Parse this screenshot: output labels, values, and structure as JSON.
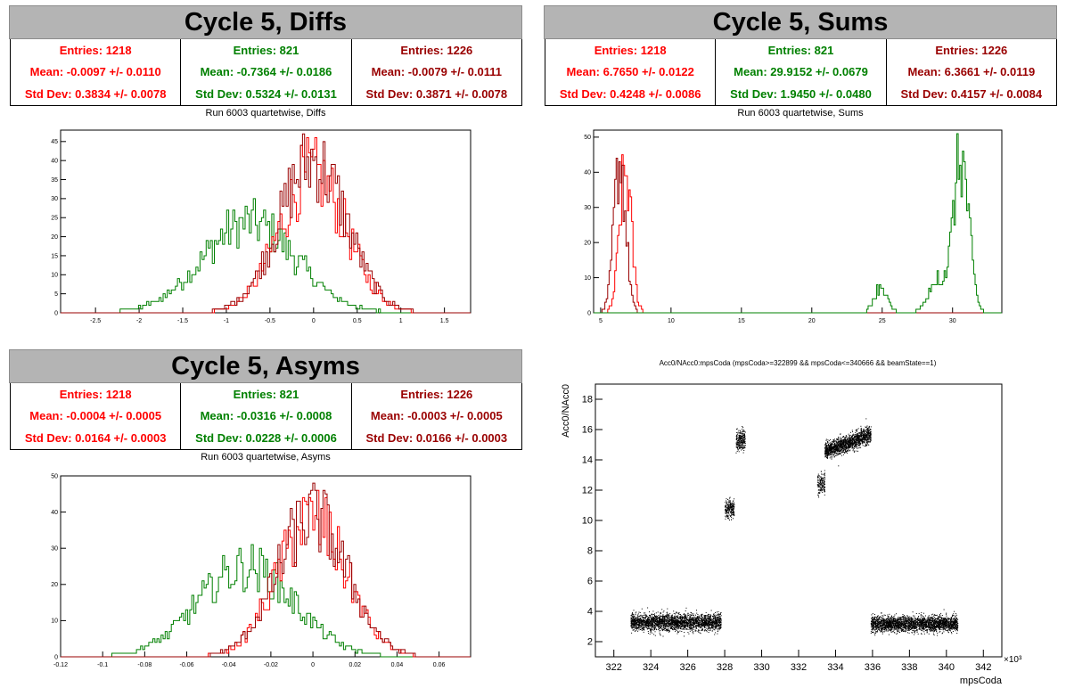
{
  "panels": [
    {
      "title": "Cycle 5, Diffs",
      "subtitle": "Run 6003 quartetwise, Diffs",
      "stats": [
        {
          "entries": "Entries: 1218",
          "mean": "Mean: -0.0097 +/- 0.0110",
          "std": "Std Dev: 0.3834 +/- 0.0078"
        },
        {
          "entries": "Entries: 821",
          "mean": "Mean: -0.7364 +/- 0.0186",
          "std": "Std Dev: 0.5324 +/- 0.0131"
        },
        {
          "entries": "Entries: 1226",
          "mean": "Mean: -0.0079 +/- 0.0111",
          "std": "Std Dev: 0.3871 +/- 0.0078"
        }
      ]
    },
    {
      "title": "Cycle 5, Sums",
      "subtitle": "Run 6003 quartetwise, Sums",
      "stats": [
        {
          "entries": "Entries: 1218",
          "mean": "Mean: 6.7650 +/- 0.0122",
          "std": "Std Dev: 0.4248 +/- 0.0086"
        },
        {
          "entries": "Entries: 821",
          "mean": "Mean: 29.9152 +/- 0.0679",
          "std": "Std Dev: 1.9450 +/- 0.0480"
        },
        {
          "entries": "Entries: 1226",
          "mean": "Mean: 6.3661 +/- 0.0119",
          "std": "Std Dev: 0.4157 +/- 0.0084"
        }
      ]
    },
    {
      "title": "Cycle 5, Asyms",
      "subtitle": "Run 6003 quartetwise, Asyms",
      "stats": [
        {
          "entries": "Entries: 1218",
          "mean": "Mean: -0.0004 +/- 0.0005",
          "std": "Std Dev: 0.0164 +/- 0.0003"
        },
        {
          "entries": "Entries: 821",
          "mean": "Mean: -0.0316 +/- 0.0008",
          "std": "Std Dev: 0.0228 +/- 0.0006"
        },
        {
          "entries": "Entries: 1226",
          "mean": "Mean: -0.0003 +/- 0.0005",
          "std": "Std Dev: 0.0166 +/- 0.0003"
        }
      ]
    }
  ],
  "scatter_title": "Acc0/NAcc0:mpsCoda (mpsCoda>=322899 && mpsCoda<=340666 && beamState==1)",
  "colors": {
    "red": "#ff0000",
    "green": "#008000",
    "darkred": "#990000",
    "title_bg": "#b4b4b4"
  },
  "chart_data": [
    {
      "type": "histogram",
      "name": "diffs",
      "xlim": [
        -2.9,
        1.8
      ],
      "ylim": [
        0,
        48
      ],
      "xticks": [
        "-2.5",
        "-2",
        "-1.5",
        "-1",
        "-0.5",
        "0",
        "0.5",
        "1",
        "1.5"
      ],
      "yticks": [
        "0",
        "5",
        "10",
        "15",
        "20",
        "25",
        "30",
        "35",
        "40",
        "45"
      ],
      "series": [
        {
          "color": "green",
          "mean": -0.7364,
          "std": 0.5324,
          "entries": 821,
          "peak": 30
        },
        {
          "color": "red",
          "mean": -0.0097,
          "std": 0.3834,
          "entries": 1218,
          "peak": 46
        },
        {
          "color": "darkred",
          "mean": -0.0079,
          "std": 0.3871,
          "entries": 1226,
          "peak": 47
        }
      ]
    },
    {
      "type": "histogram",
      "name": "sums",
      "xlim": [
        4.5,
        33.5
      ],
      "ylim": [
        0,
        52
      ],
      "xticks": [
        "5",
        "10",
        "15",
        "20",
        "25",
        "30"
      ],
      "yticks": [
        "0",
        "10",
        "20",
        "30",
        "40",
        "50"
      ],
      "series": [
        {
          "color": "red",
          "mean": 6.765,
          "std": 0.4248,
          "entries": 1218,
          "peak": 45
        },
        {
          "color": "darkred",
          "mean": 6.3661,
          "std": 0.4157,
          "entries": 1226,
          "peak": 44
        },
        {
          "color": "green",
          "mean": 30.6,
          "std": 0.55,
          "entries": 621,
          "peak": 50
        },
        {
          "color": "green",
          "mean": 24.9,
          "std": 0.45,
          "entries": 110,
          "peak": 8
        },
        {
          "color": "green",
          "mean": 28.9,
          "std": 0.6,
          "entries": 90,
          "peak": 12
        }
      ]
    },
    {
      "type": "histogram",
      "name": "asyms",
      "xlim": [
        -0.12,
        0.075
      ],
      "ylim": [
        0,
        50
      ],
      "xticks": [
        "-0.12",
        "-0.1",
        "-0.08",
        "-0.06",
        "-0.04",
        "-0.02",
        "0",
        "0.02",
        "0.04",
        "0.06"
      ],
      "yticks": [
        "0",
        "10",
        "20",
        "30",
        "40",
        "50"
      ],
      "series": [
        {
          "color": "green",
          "mean": -0.0316,
          "std": 0.0228,
          "entries": 821,
          "peak": 31
        },
        {
          "color": "red",
          "mean": -0.0004,
          "std": 0.0164,
          "entries": 1218,
          "peak": 46
        },
        {
          "color": "darkred",
          "mean": -0.0003,
          "std": 0.0166,
          "entries": 1226,
          "peak": 48
        }
      ]
    },
    {
      "type": "scatter",
      "name": "acc0_vs_mpscoda",
      "xlabel": "mpsCoda",
      "ylabel": "Acc0/NAcc0",
      "xscale_label": "×10³",
      "xlim": [
        321,
        343
      ],
      "ylim": [
        1,
        19
      ],
      "xticks": [
        "322",
        "324",
        "326",
        "328",
        "330",
        "332",
        "334",
        "336",
        "338",
        "340",
        "342"
      ],
      "yticks": [
        "2",
        "4",
        "6",
        "8",
        "10",
        "12",
        "14",
        "16",
        "18"
      ],
      "clusters": [
        {
          "x0": 322.9,
          "x1": 327.8,
          "y0": 3.3,
          "y1": 3.3,
          "spread": 0.6,
          "n": 2600
        },
        {
          "x0": 328.0,
          "x1": 328.5,
          "y0": 10.7,
          "y1": 10.9,
          "spread": 0.7,
          "n": 220
        },
        {
          "x0": 328.6,
          "x1": 329.1,
          "y0": 15.2,
          "y1": 15.4,
          "spread": 0.7,
          "n": 260
        },
        {
          "x0": 333.0,
          "x1": 333.4,
          "y0": 12.3,
          "y1": 12.6,
          "spread": 0.7,
          "n": 160
        },
        {
          "x0": 333.4,
          "x1": 335.9,
          "y0": 14.6,
          "y1": 15.7,
          "spread": 0.6,
          "n": 1500
        },
        {
          "x0": 335.9,
          "x1": 340.6,
          "y0": 3.2,
          "y1": 3.2,
          "spread": 0.55,
          "n": 2500
        }
      ]
    }
  ]
}
